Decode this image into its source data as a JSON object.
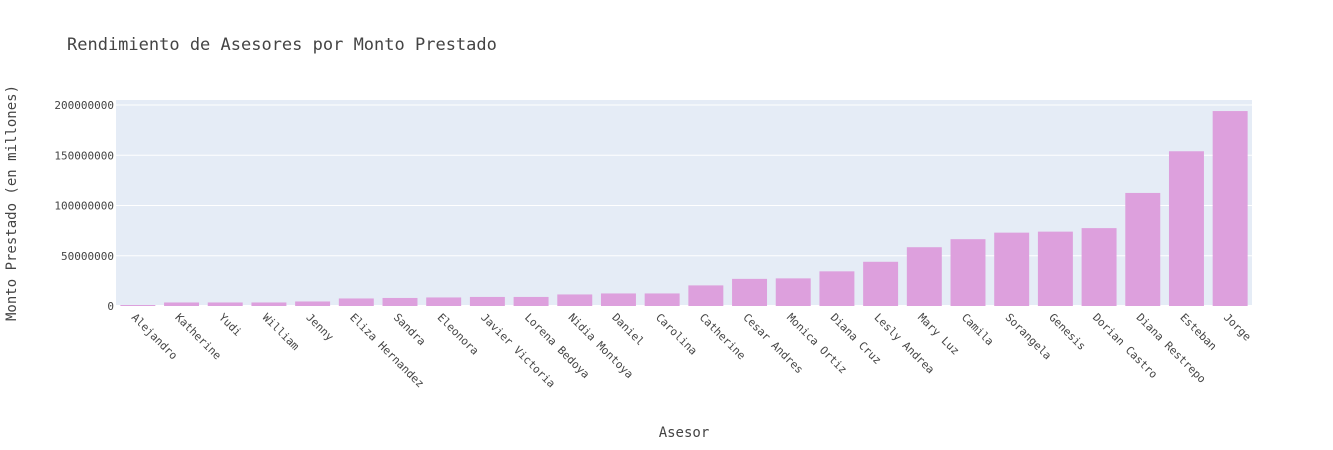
{
  "chart_data": {
    "type": "bar",
    "title": "Rendimiento de Asesores por Monto Prestado",
    "xlabel": "Asesor",
    "ylabel": "Monto Prestado (en millones)",
    "ylim": [
      0,
      205000000
    ],
    "yticks": [
      0,
      50000000,
      100000000,
      150000000,
      200000000
    ],
    "ytick_labels": [
      "0",
      "50000000",
      "100000000",
      "150000000",
      "200000000"
    ],
    "grid": true,
    "bar_color": "#dda0dd",
    "plot_bg": "#e5ecf6",
    "categories": [
      "Alejandro",
      "Katherine",
      "Yudi",
      "William",
      "Jenny",
      "Eliza Hernandez",
      "Sandra",
      "Eleonora",
      "Javier Victoria",
      "Lorena Bedoya",
      "Nidia Montoya",
      "Daniel",
      "Carolina",
      "Catherine",
      "Cesar Andres",
      "Monica Ortiz",
      "Diana Cruz",
      "Lesly Andrea",
      "Mary Luz",
      "Camila",
      "Sorangela",
      "Genesis",
      "Dorian Castro",
      "Diana Restrepo",
      "Esteban",
      "Jorge"
    ],
    "values": [
      1000000,
      3500000,
      3500000,
      3500000,
      4500000,
      7500000,
      8000000,
      8500000,
      9000000,
      9000000,
      11500000,
      12500000,
      12500000,
      20500000,
      27000000,
      27500000,
      34500000,
      44000000,
      58500000,
      66500000,
      73000000,
      74000000,
      77500000,
      112500000,
      154000000,
      194000000
    ]
  }
}
